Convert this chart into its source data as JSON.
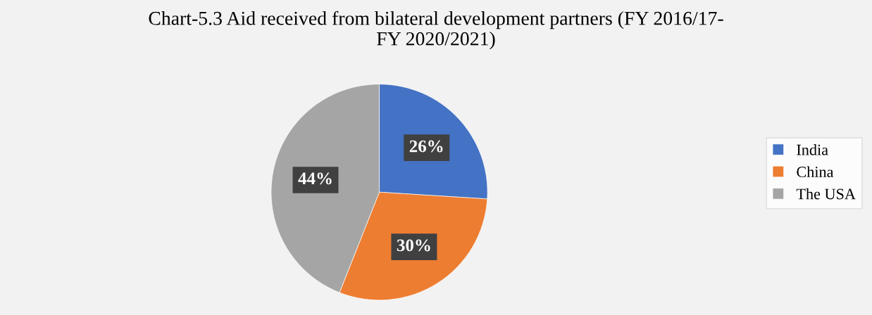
{
  "chart_data": {
    "type": "pie",
    "title": "Chart-5.3 Aid received from bilateral development partners (FY 2016/17-\nFY 2020/2021)",
    "categories": [
      "India",
      "China",
      "The USA"
    ],
    "values": [
      26,
      30,
      44
    ],
    "colors": [
      "#4472c4",
      "#ed7d31",
      "#a5a5a5"
    ],
    "value_labels": [
      "26%",
      "30%",
      "44%"
    ],
    "legend": "right"
  }
}
